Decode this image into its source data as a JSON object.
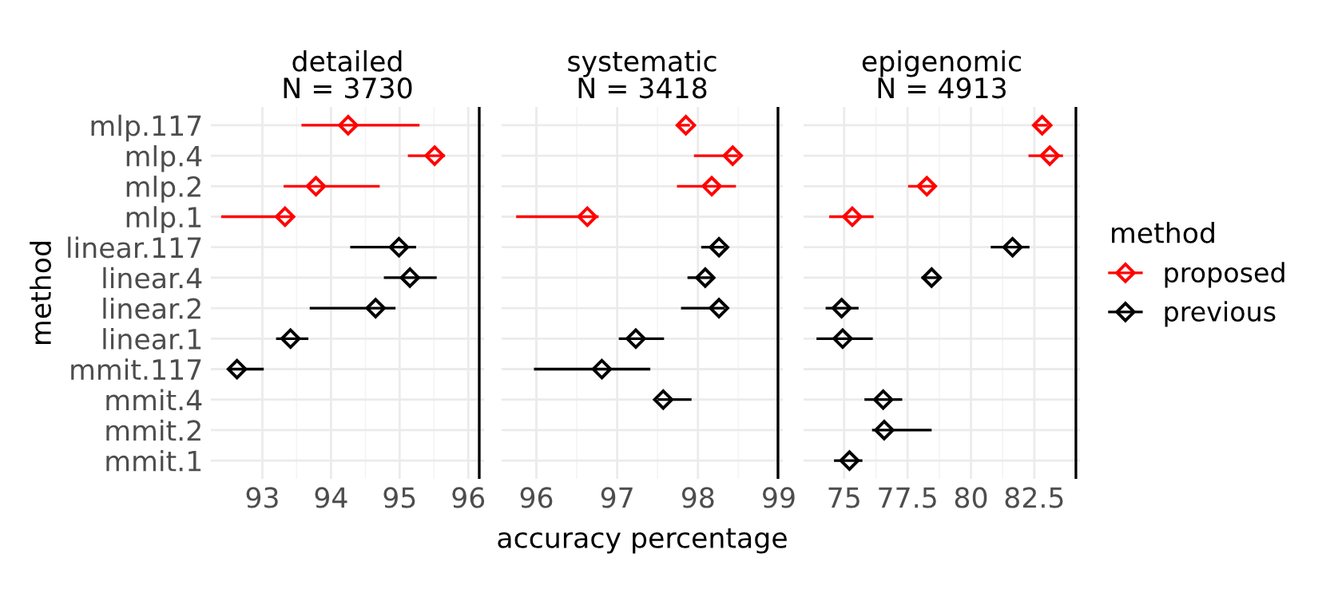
{
  "chart_data": [
    {
      "type": "scatter",
      "title": "detailed\nN = 3730",
      "ylabel": "method",
      "orientation": "horizontal",
      "marker": "diamond",
      "grid": true,
      "categories": [
        "mlp.117",
        "mlp.4",
        "mlp.2",
        "mlp.1",
        "linear.117",
        "linear.4",
        "linear.2",
        "linear.1",
        "mmit.117",
        "mmit.4",
        "mmit.2",
        "mmit.1"
      ],
      "xlim": [
        92.25,
        96.23
      ],
      "xticks": [
        93,
        94,
        95,
        96
      ],
      "ref_lines": [
        {
          "axis": "x",
          "value": 96.16,
          "color": "#000000"
        }
      ],
      "series": [
        {
          "color": "#ff0000",
          "values": [
            94.25,
            95.51,
            93.78,
            93.33,
            null,
            null,
            null,
            null,
            null,
            null,
            null,
            null
          ],
          "errors": [
            [
              93.57,
              95.29
            ],
            [
              95.12,
              95.66
            ],
            [
              93.31,
              94.71
            ],
            [
              92.4,
              93.47
            ],
            null,
            null,
            null,
            null,
            null,
            null,
            null,
            null
          ]
        },
        {
          "color": "#000000",
          "values": [
            null,
            null,
            null,
            null,
            94.99,
            95.15,
            94.65,
            93.41,
            92.63,
            null,
            null,
            null
          ],
          "errors": [
            null,
            null,
            null,
            null,
            [
              94.28,
              95.24
            ],
            [
              94.77,
              95.54
            ],
            [
              93.69,
              94.94
            ],
            [
              93.2,
              93.67
            ],
            [
              92.5,
              93.02
            ],
            null,
            null,
            null
          ]
        }
      ]
    },
    {
      "type": "scatter",
      "title": "systematic\nN = 3418",
      "xlabel": "accuracy percentage",
      "orientation": "horizontal",
      "marker": "diamond",
      "grid": true,
      "tick_labels": "x",
      "xlim": [
        95.57,
        99.05
      ],
      "xticks": [
        96,
        97,
        98,
        99
      ],
      "ref_lines": [
        {
          "axis": "x",
          "value": 98.99,
          "color": "#000000"
        }
      ],
      "series": [
        {
          "color": "#ff0000",
          "values": [
            97.85,
            98.43,
            98.17,
            96.63,
            null,
            null,
            null,
            null,
            null,
            null,
            null,
            null
          ],
          "errors": [
            [
              97.74,
              97.9
            ],
            [
              97.95,
              98.5
            ],
            [
              97.74,
              98.47
            ],
            [
              95.75,
              96.77
            ],
            null,
            null,
            null,
            null,
            null,
            null,
            null,
            null
          ]
        },
        {
          "color": "#000000",
          "values": [
            null,
            null,
            null,
            null,
            98.26,
            98.09,
            98.26,
            97.23,
            96.81,
            97.57,
            null,
            null
          ],
          "errors": [
            null,
            null,
            null,
            null,
            [
              98.04,
              98.33
            ],
            [
              97.87,
              98.17
            ],
            [
              97.79,
              98.33
            ],
            [
              97.02,
              97.58
            ],
            [
              95.97,
              97.41
            ],
            [
              97.5,
              97.92
            ],
            null,
            null
          ]
        }
      ]
    },
    {
      "type": "scatter",
      "title": "epigenomic\nN = 4913",
      "legend_title": "method",
      "legend": "right",
      "orientation": "horizontal",
      "marker": "diamond",
      "grid": true,
      "tick_labels": "x",
      "xlim": [
        73.4,
        84.3
      ],
      "xticks": [
        75,
        77.5,
        80,
        82.5
      ],
      "ref_lines": [
        {
          "axis": "x",
          "value": 84.14,
          "color": "#000000"
        }
      ],
      "series": [
        {
          "name": "proposed",
          "color": "#ff0000",
          "values": [
            82.81,
            83.11,
            78.26,
            75.32,
            null,
            null,
            null,
            null,
            null,
            null,
            null,
            null
          ],
          "errors": [
            [
              82.46,
              83.03
            ],
            [
              82.27,
              83.63
            ],
            [
              77.52,
              78.62
            ],
            [
              74.41,
              76.16
            ],
            null,
            null,
            null,
            null,
            null,
            null,
            null,
            null
          ]
        },
        {
          "name": "previous",
          "color": "#000000",
          "values": [
            null,
            null,
            null,
            null,
            81.64,
            78.45,
            74.9,
            74.94,
            null,
            76.54,
            76.58,
            75.21
          ],
          "errors": [
            null,
            null,
            null,
            null,
            [
              80.78,
              82.31
            ],
            [
              78.05,
              78.78
            ],
            [
              74.27,
              75.57
            ],
            [
              73.91,
              76.13
            ],
            null,
            [
              75.8,
              77.29
            ],
            [
              76.1,
              78.45
            ],
            [
              74.6,
              75.72
            ]
          ]
        }
      ]
    }
  ]
}
